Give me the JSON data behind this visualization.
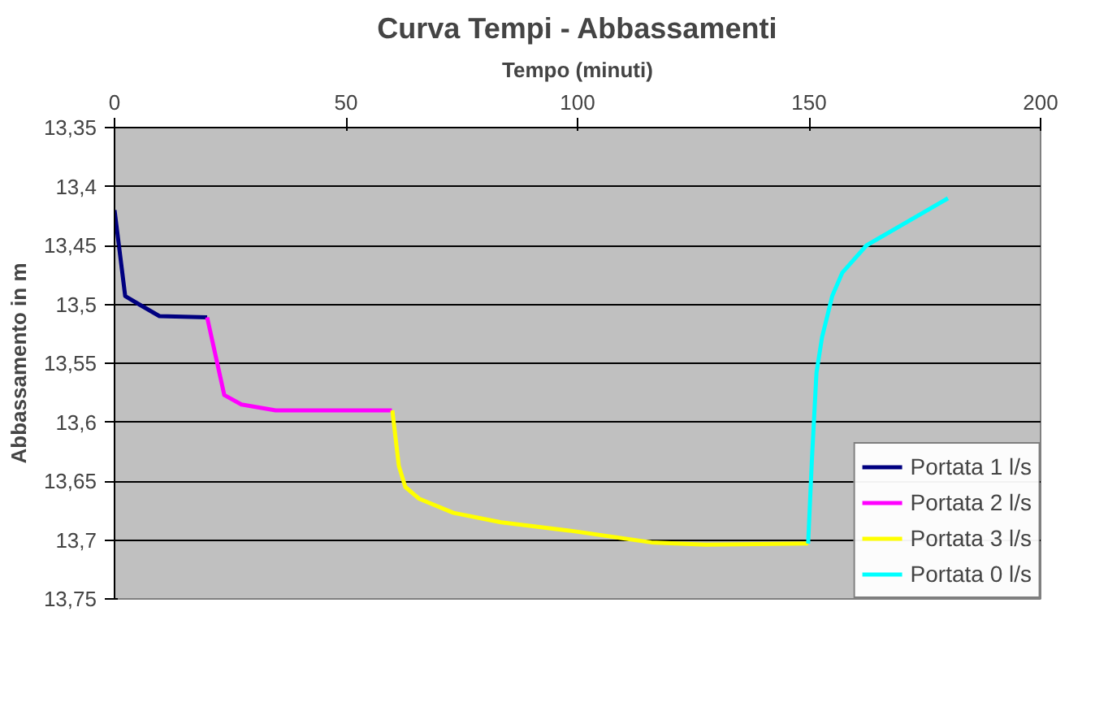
{
  "chart_data": {
    "type": "line",
    "title": "Curva Tempi - Abbassamenti",
    "xlabel": "Tempo (minuti)",
    "ylabel": "Abbassamento in m",
    "xlim": [
      0,
      200
    ],
    "xticks": [
      0,
      50,
      100,
      150,
      200
    ],
    "ylim": [
      13.75,
      13.35
    ],
    "yticks": [
      {
        "value": 13.35,
        "label": "13,35"
      },
      {
        "value": 13.4,
        "label": "13,4"
      },
      {
        "value": 13.45,
        "label": "13,45"
      },
      {
        "value": 13.5,
        "label": "13,5"
      },
      {
        "value": 13.55,
        "label": "13,55"
      },
      {
        "value": 13.6,
        "label": "13,6"
      },
      {
        "value": 13.65,
        "label": "13,65"
      },
      {
        "value": 13.7,
        "label": "13,7"
      },
      {
        "value": 13.75,
        "label": "13,75"
      }
    ],
    "grid": "y",
    "legend": "bottom right",
    "marker": "none",
    "line_style": "solid",
    "series": [
      {
        "name": "Portata 1 l/s",
        "color": "#000080",
        "x": [
          0,
          2.3,
          5.3,
          9.7,
          20
        ],
        "values": [
          13.42,
          13.493,
          13.5,
          13.51,
          13.511
        ]
      },
      {
        "name": "Portata 2 l/s",
        "color": "#ff00ff",
        "x": [
          20,
          22.3,
          23.7,
          27.4,
          34.8,
          59.9
        ],
        "values": [
          13.511,
          13.552,
          13.577,
          13.585,
          13.59,
          13.59
        ]
      },
      {
        "name": "Portata 3 l/s",
        "color": "#ffff00",
        "x": [
          60,
          61.4,
          62.8,
          65.8,
          73.2,
          83.5,
          98.2,
          115.9,
          127.7,
          149.8
        ],
        "values": [
          13.59,
          13.637,
          13.655,
          13.665,
          13.677,
          13.685,
          13.692,
          13.702,
          13.704,
          13.703
        ]
      },
      {
        "name": "Portata 0 l/s",
        "color": "#00ffff",
        "x": [
          149.8,
          150.6,
          151.6,
          152.8,
          155,
          157.2,
          162.4,
          180
        ],
        "values": [
          13.703,
          13.633,
          13.558,
          13.528,
          13.493,
          13.473,
          13.45,
          13.41
        ]
      }
    ]
  }
}
